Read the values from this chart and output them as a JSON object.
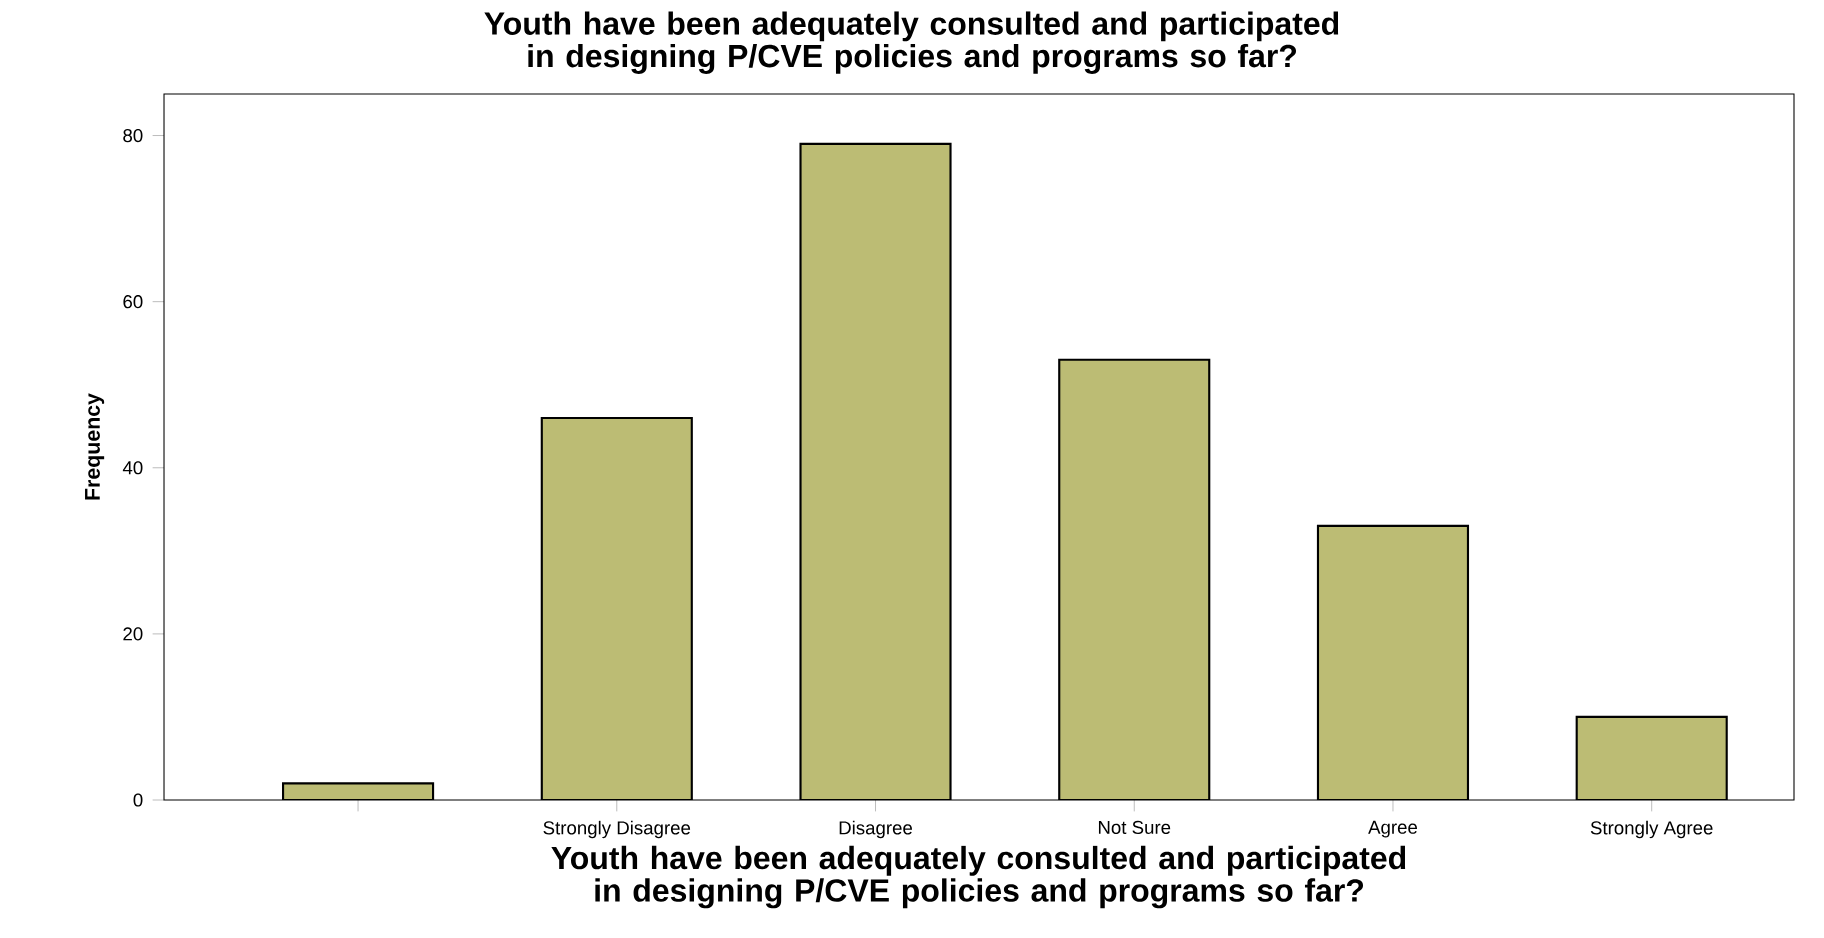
{
  "chart_data": {
    "type": "bar",
    "title": "Youth have been adequately consulted and participated in designing P/CVE policies and programs so far?",
    "xlabel": "Youth have been adequately consulted and participated in designing P/CVE policies and programs so far?",
    "ylabel": "Frequency",
    "categories": [
      null,
      "Strongly Disagree",
      "Disagree",
      "Not Sure",
      "Agree",
      "Strongly Agree"
    ],
    "values": [
      2,
      46,
      79,
      53,
      33,
      10
    ],
    "color": "#bcbc74",
    "ylim": [
      0,
      85
    ],
    "yticks": [
      0,
      20,
      40,
      60,
      80
    ],
    "grid": false
  }
}
